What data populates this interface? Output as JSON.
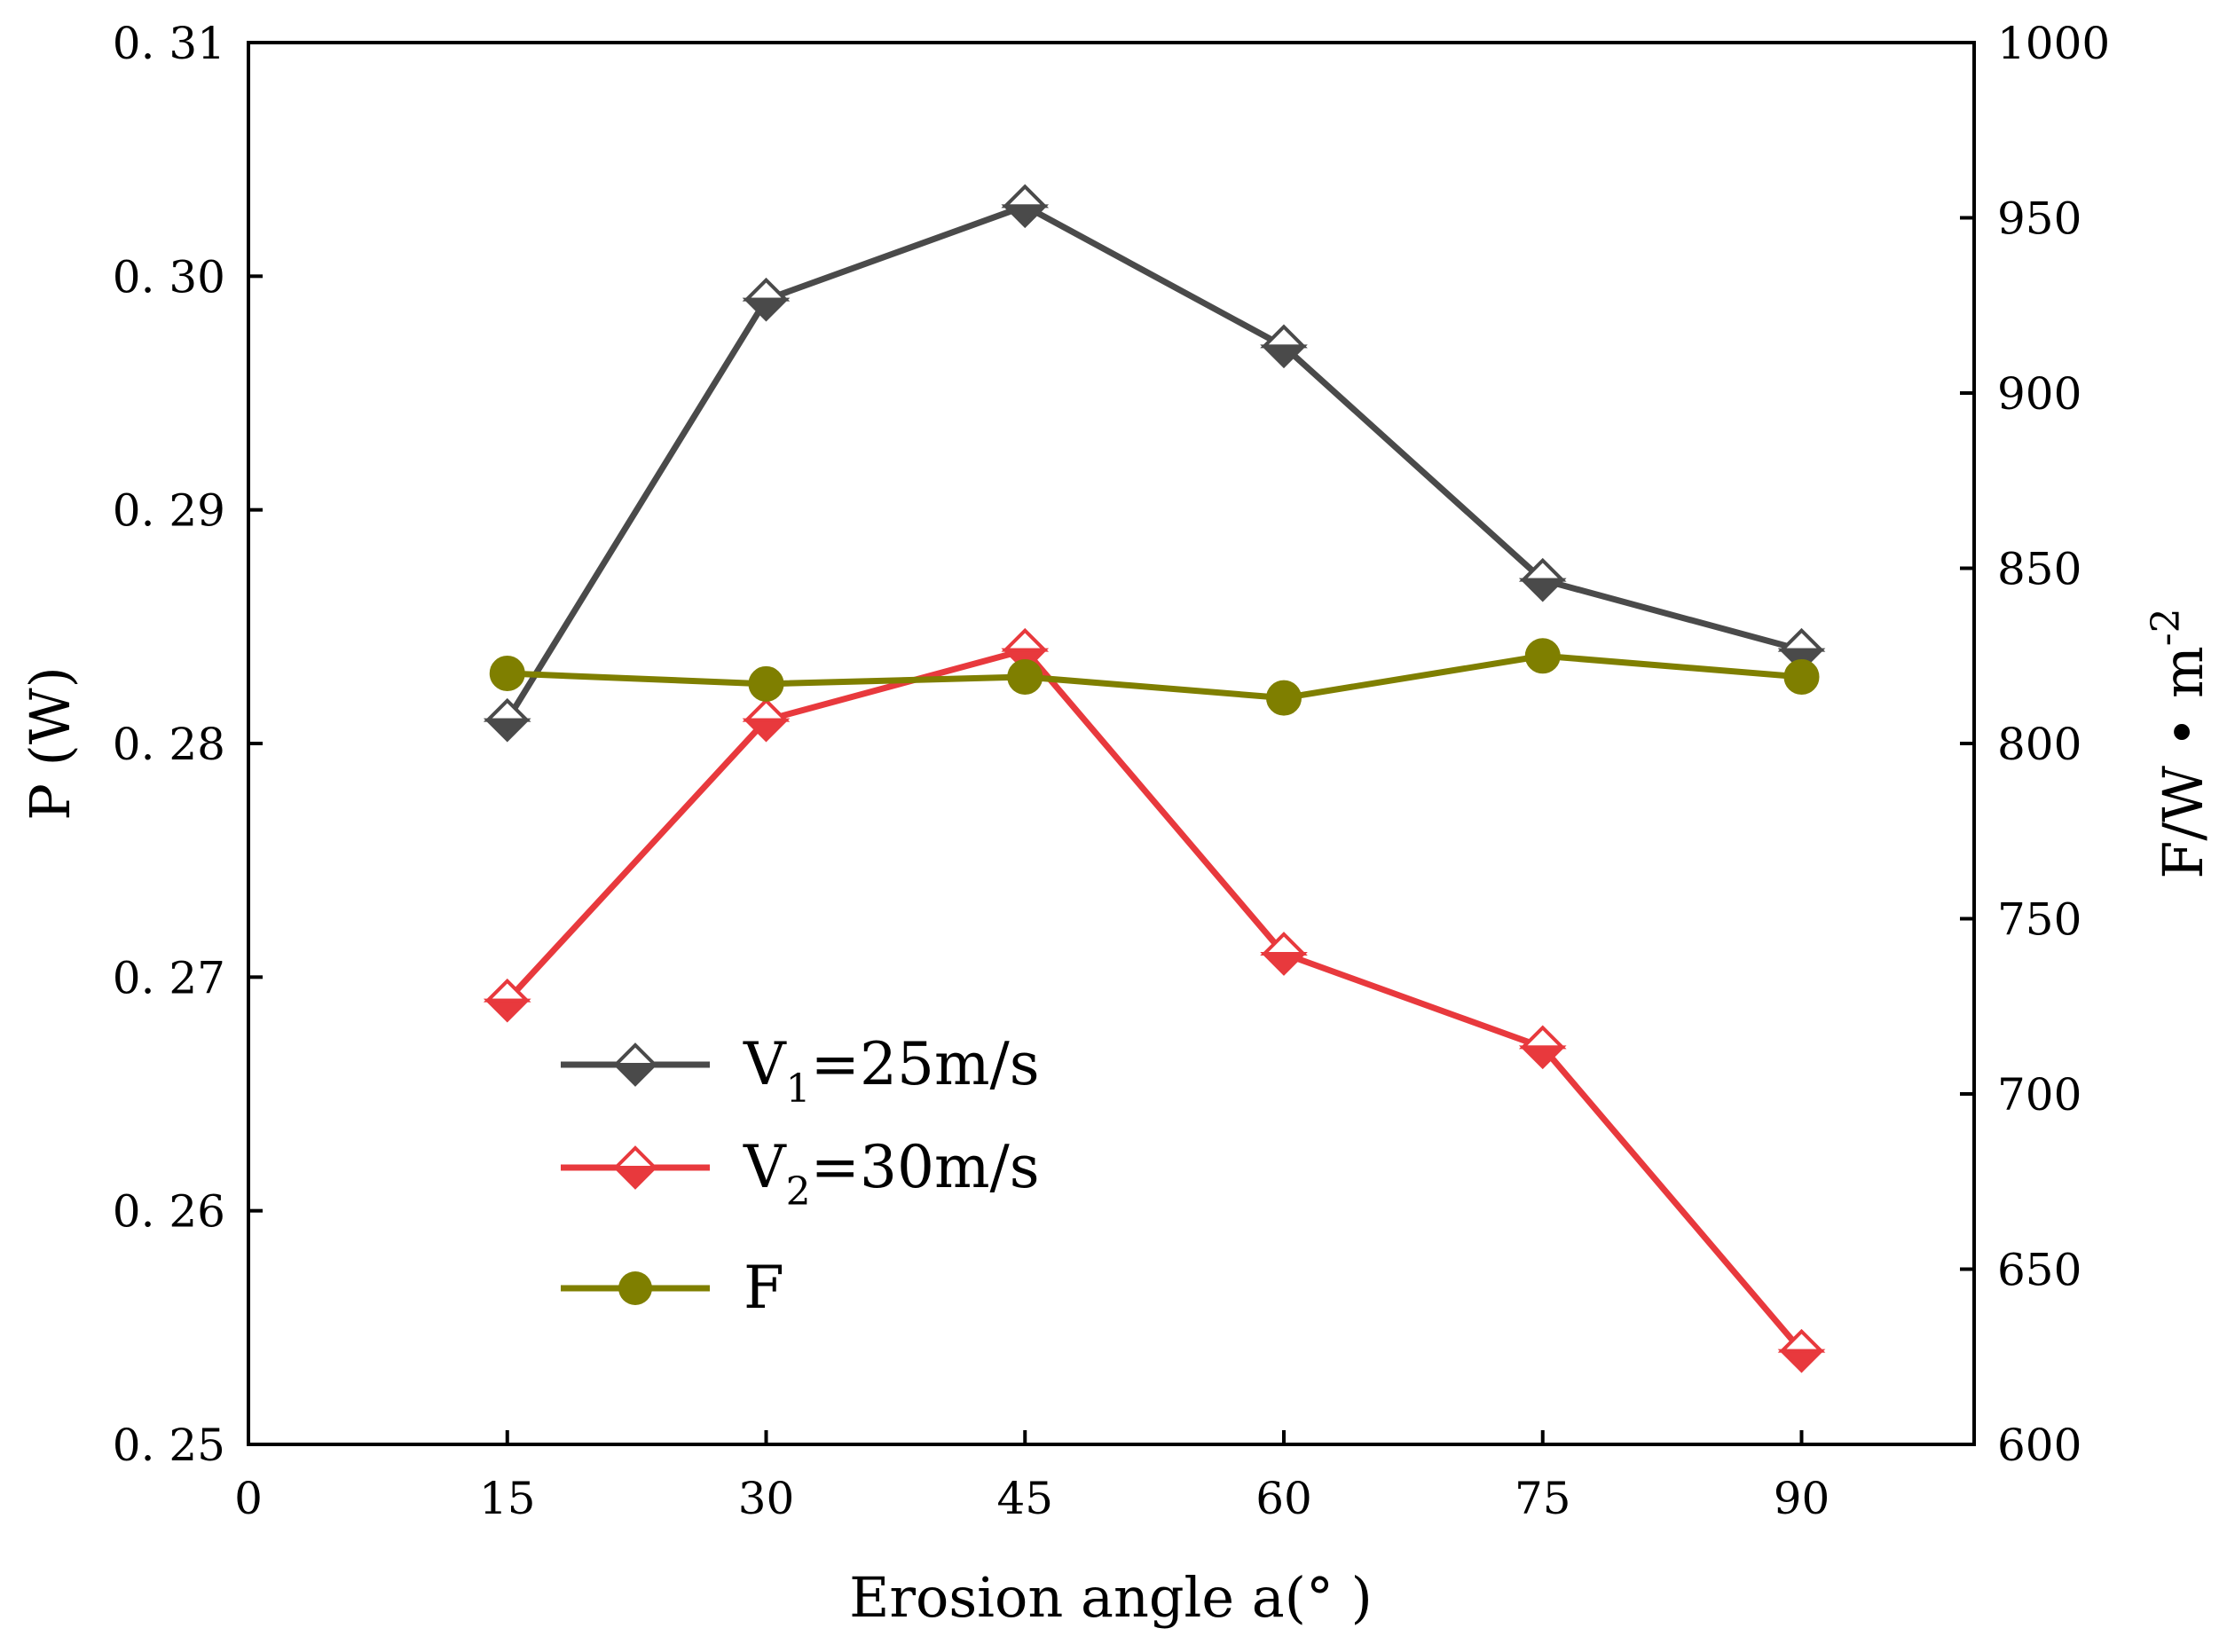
{
  "chart_data": {
    "type": "line",
    "x": [
      15,
      30,
      45,
      60,
      75,
      90
    ],
    "xlabel": "Erosion angle a(° )",
    "ylabel": "P (W)",
    "ylabel_right": "F/W • m",
    "ylabel_right_sup": "-2",
    "xlim": [
      0,
      100
    ],
    "ylim": [
      0.25,
      0.31
    ],
    "ylim_right": [
      600,
      1000
    ],
    "xticks": [
      "0",
      "15",
      "30",
      "45",
      "60",
      "75",
      "90"
    ],
    "yticks": [
      "0. 25",
      "0. 26",
      "0. 27",
      "0. 28",
      "0. 29",
      "0. 30",
      "0. 31"
    ],
    "yticks_right": [
      "600",
      "650",
      "700",
      "750",
      "800",
      "850",
      "900",
      "950",
      "1000"
    ],
    "grid": false,
    "legend_position": "lower-left",
    "series": [
      {
        "key": "v1",
        "legend_main": "V",
        "legend_sub": "1",
        "legend_rest": "=25m/s",
        "axis": "left",
        "marker": "diamond-half",
        "color": "#4a4a4a",
        "values": [
          0.281,
          0.299,
          0.303,
          0.297,
          0.287,
          0.284
        ]
      },
      {
        "key": "v2",
        "legend_main": "V",
        "legend_sub": "2",
        "legend_rest": "=30m/s",
        "axis": "left",
        "marker": "diamond-half",
        "color": "#e8393d",
        "values": [
          0.269,
          0.281,
          0.284,
          0.271,
          0.267,
          0.254
        ]
      },
      {
        "key": "f",
        "legend_main": "F",
        "legend_sub": "",
        "legend_rest": "",
        "axis": "right",
        "marker": "circle",
        "color": "#7f7f00",
        "values": [
          820,
          817,
          819,
          813,
          825,
          819
        ]
      }
    ]
  }
}
